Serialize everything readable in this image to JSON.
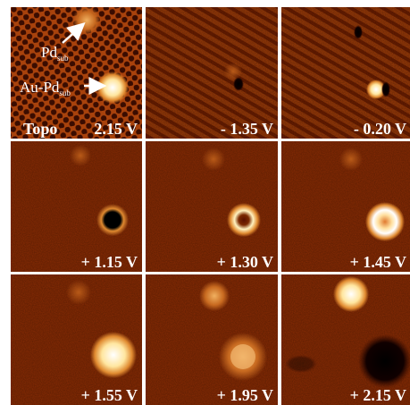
{
  "panels": [
    {
      "label": "Topo",
      "voltage": "2.15 V",
      "annotations": [
        {
          "text": "Pd",
          "subscript": "sub"
        },
        {
          "text": "Au-Pd",
          "subscript": "sub"
        }
      ]
    },
    {
      "voltage": "- 1.35 V"
    },
    {
      "voltage": "- 0.20 V"
    },
    {
      "voltage": "+ 1.15 V"
    },
    {
      "voltage": "+ 1.30 V"
    },
    {
      "voltage": "+ 1.45 V"
    },
    {
      "voltage": "+ 1.55 V"
    },
    {
      "voltage": "+ 1.95 V"
    },
    {
      "voltage": "+ 2.15 V"
    }
  ]
}
